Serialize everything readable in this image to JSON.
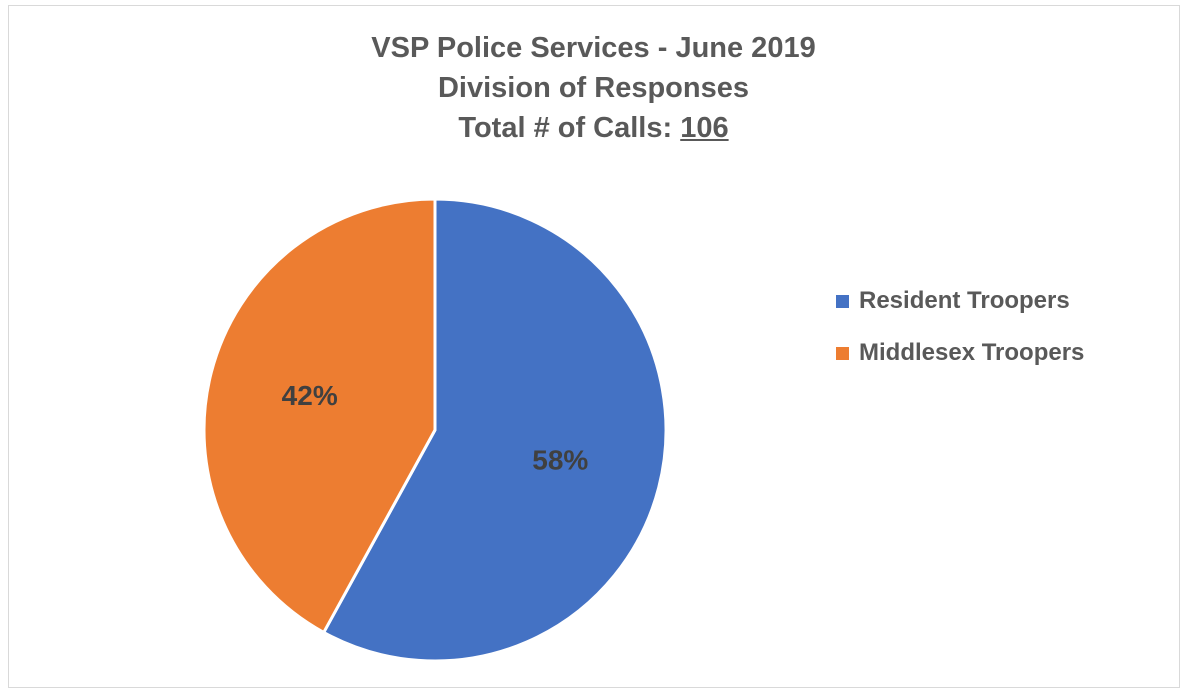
{
  "chart_data": {
    "type": "pie",
    "title_lines": [
      "VSP Police Services - June 2019",
      "Division of Responses"
    ],
    "total_label": "Total # of Calls:",
    "total_value": "106",
    "slices": [
      {
        "name": "Resident Troopers",
        "value": 58,
        "label": "58%",
        "color": "#4472C4"
      },
      {
        "name": "Middlesex Troopers",
        "value": 42,
        "label": "42%",
        "color": "#ED7D31"
      }
    ],
    "legend_position": "right"
  }
}
